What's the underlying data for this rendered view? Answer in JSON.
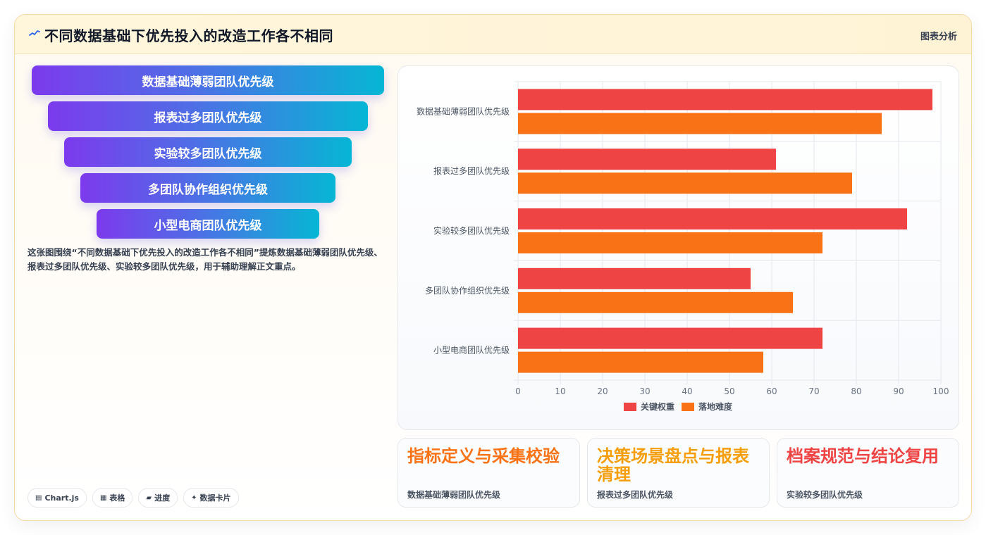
{
  "header": {
    "title": "不同数据基础下优先投入的改造工作各不相同",
    "tag": "图表分析",
    "icon": "sparkline-icon"
  },
  "funnel": {
    "items": [
      "数据基础薄弱团队优先级",
      "报表过多团队优先级",
      "实验较多团队优先级",
      "多团队协作组织优先级",
      "小型电商团队优先级"
    ]
  },
  "description": "这张图围绕“不同数据基础下优先投入的改造工作各不相同”提炼数据基础薄弱团队优先级、报表过多团队优先级、实验较多团队优先级，用于辅助理解正文重点。",
  "chips": [
    {
      "icon": "chart-icon",
      "glyph": "▤",
      "label": "Chart.js"
    },
    {
      "icon": "table-icon",
      "glyph": "▦",
      "label": "表格"
    },
    {
      "icon": "progress-icon",
      "glyph": "▰",
      "label": "进度"
    },
    {
      "icon": "sparkle-icon",
      "glyph": "✦",
      "label": "数据卡片"
    }
  ],
  "chart_data": {
    "type": "bar",
    "orientation": "horizontal",
    "categories": [
      "数据基础薄弱团队优先级",
      "报表过多团队优先级",
      "实验较多团队优先级",
      "多团队协作组织优先级",
      "小型电商团队优先级"
    ],
    "series": [
      {
        "name": "关键权重",
        "color": "#ef4444",
        "values": [
          98,
          61,
          92,
          55,
          72
        ]
      },
      {
        "name": "落地难度",
        "color": "#f97316",
        "values": [
          86,
          79,
          72,
          65,
          58
        ]
      }
    ],
    "xlim": [
      0,
      100
    ],
    "xticks": [
      0,
      10,
      20,
      30,
      40,
      50,
      60,
      70,
      80,
      90,
      100
    ],
    "grid": true,
    "legend": "bottom"
  },
  "cards": [
    {
      "title": "指标定义与采集校验",
      "subtitle": "数据基础薄弱团队优先级",
      "color": "#f97316"
    },
    {
      "title": "决策场景盘点与报表清理",
      "subtitle": "报表过多团队优先级",
      "color": "#f59e0b"
    },
    {
      "title": "档案规范与结论复用",
      "subtitle": "实验较多团队优先级",
      "color": "#ef4444"
    }
  ]
}
